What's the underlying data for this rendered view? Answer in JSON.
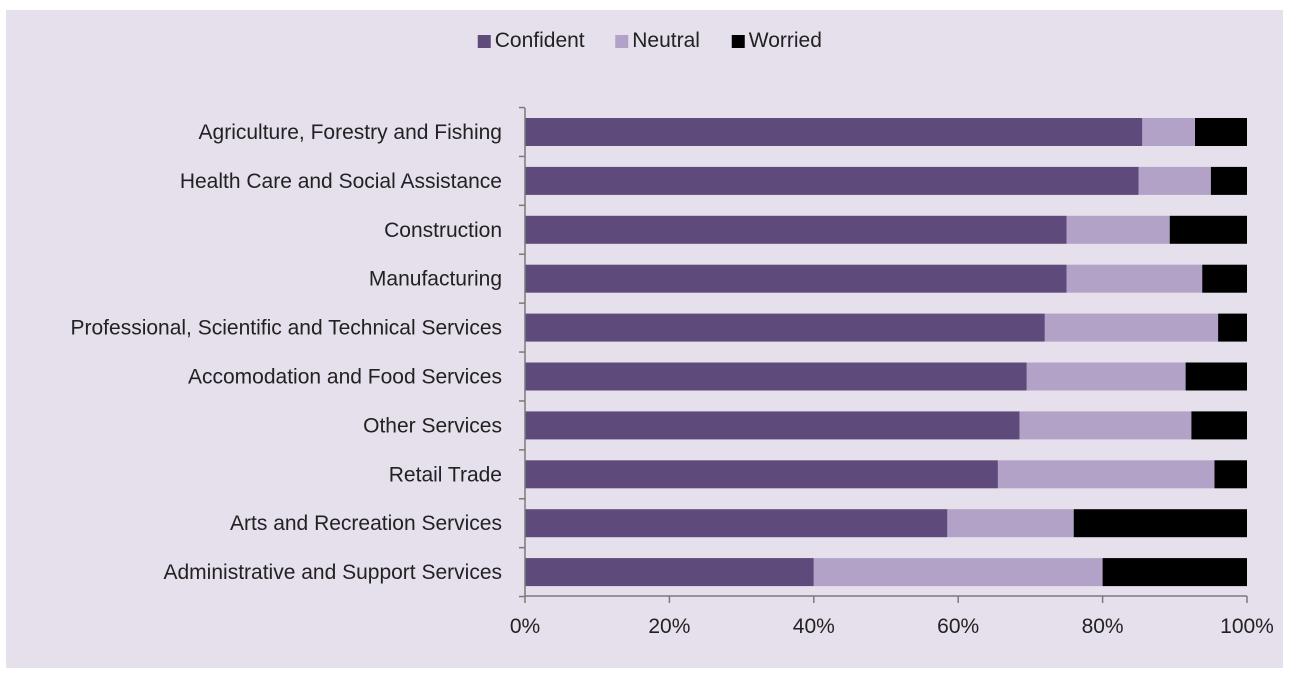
{
  "chart_data": {
    "type": "bar",
    "orientation": "horizontal",
    "stacked": true,
    "title": "",
    "xlabel": "",
    "ylabel": "",
    "xlim": [
      0,
      100
    ],
    "x_ticks": [
      "0%",
      "20%",
      "40%",
      "60%",
      "80%",
      "100%"
    ],
    "x_tick_values": [
      0,
      20,
      40,
      60,
      80,
      100
    ],
    "grid": false,
    "legend_position": "top-center",
    "categories": [
      "Agriculture, Forestry and Fishing",
      "Health Care and Social Assistance",
      "Construction",
      "Manufacturing",
      "Professional, Scientific and Technical Services",
      "Accomodation and Food Services",
      "Other Services",
      "Retail Trade",
      "Arts and Recreation Services",
      "Administrative and Support Services"
    ],
    "series": [
      {
        "name": "Confident",
        "color": "#5f4a7c",
        "values": [
          85.5,
          85,
          75,
          75,
          72,
          69.5,
          68.5,
          65.5,
          58.5,
          40
        ]
      },
      {
        "name": "Neutral",
        "color": "#b3a2c8",
        "values": [
          7.3,
          10,
          14.3,
          18.8,
          24,
          22,
          23.8,
          30,
          17.5,
          40
        ]
      },
      {
        "name": "Worried",
        "color": "#000000",
        "values": [
          7.2,
          5,
          10.7,
          6.2,
          4,
          8.5,
          7.7,
          4.5,
          24,
          20
        ]
      }
    ]
  },
  "style": {
    "background": "#e6dfec",
    "axis_color": "#7a7a7a",
    "text_color": "#222222"
  }
}
